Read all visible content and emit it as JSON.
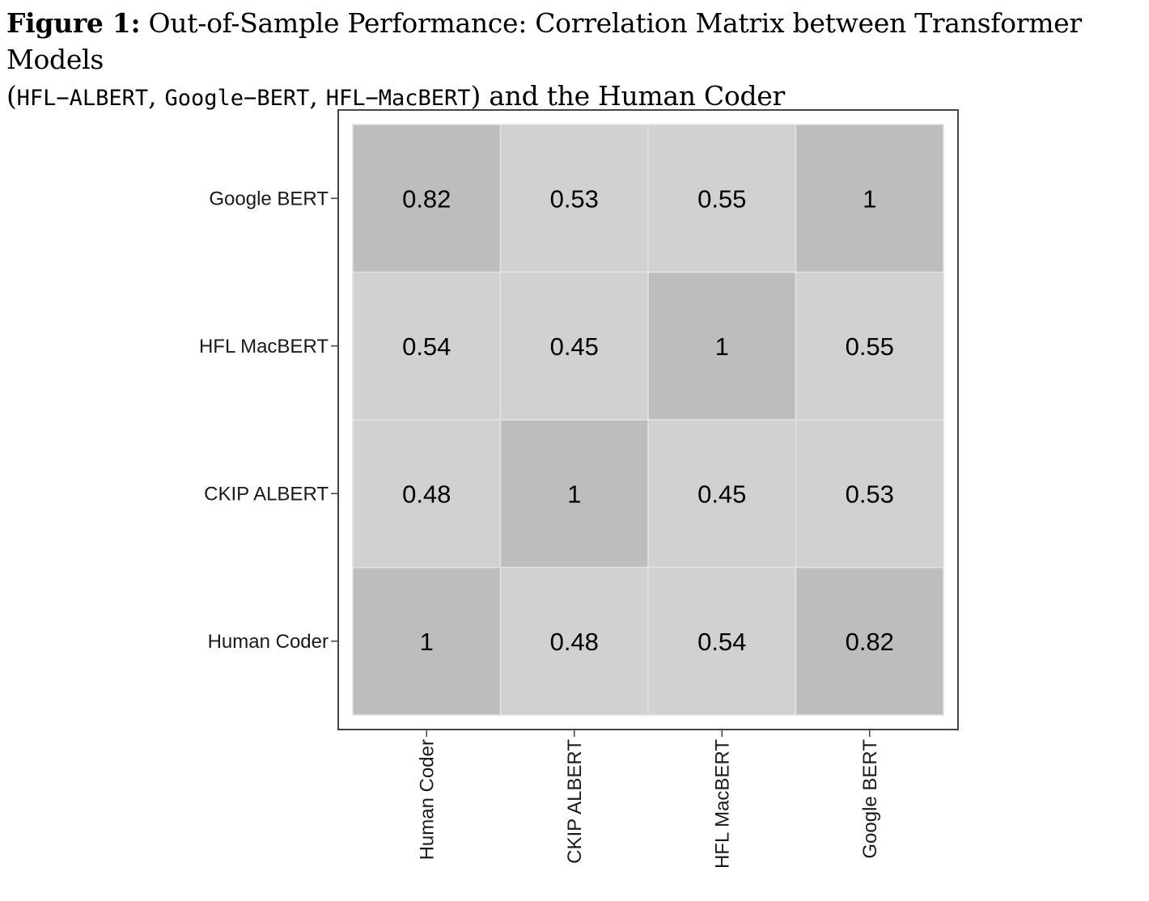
{
  "caption": {
    "figure_label": "Figure 1:",
    "text_part1": " Out-of-Sample Performance: Correlation Matrix between Transformer Models",
    "paren_open": "(",
    "model1": "HFL−ALBERT",
    "sep1": ", ",
    "model2": "Google−BERT",
    "sep2": ", ",
    "model3": "HFL−MacBERT",
    "text_part2": ") and the Human Coder"
  },
  "chart_data": {
    "type": "heatmap",
    "title": "",
    "xlabel": "",
    "ylabel": "",
    "x_categories": [
      "Human Coder",
      "CKIP ALBERT",
      "HFL MacBERT",
      "Google BERT"
    ],
    "y_categories": [
      "Human Coder",
      "CKIP ALBERT",
      "HFL MacBERT",
      "Google BERT"
    ],
    "values": [
      [
        1,
        0.48,
        0.54,
        0.82
      ],
      [
        0.48,
        1,
        0.45,
        0.53
      ],
      [
        0.54,
        0.45,
        1,
        0.55
      ],
      [
        0.82,
        0.53,
        0.55,
        1
      ]
    ],
    "value_labels": [
      [
        "1",
        "0.48",
        "0.54",
        "0.82"
      ],
      [
        "0.48",
        "1",
        "0.45",
        "0.53"
      ],
      [
        "0.54",
        "0.45",
        "1",
        "0.55"
      ],
      [
        "0.82",
        "0.53",
        "0.55",
        "1"
      ]
    ],
    "colors": {
      "high": "#bdbdbd",
      "low": "#d1d1d1",
      "cell_border": "#e2e2e2",
      "frame": "#444444",
      "text": "#000000"
    },
    "grid": false,
    "legend": "none"
  }
}
